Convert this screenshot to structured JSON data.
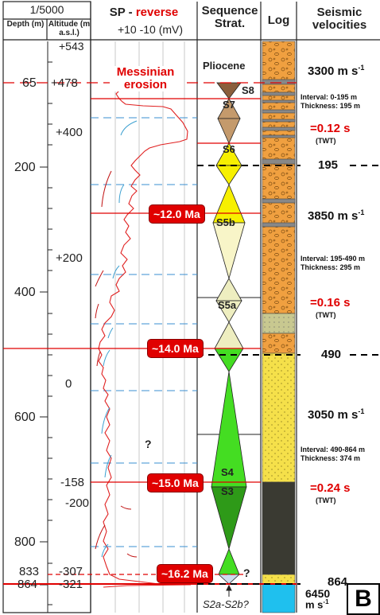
{
  "header": {
    "scale": "1/5000",
    "depth_title": "Depth (m)",
    "altitude_title": "Altitude (m a.s.l.)",
    "sp_title_prefix": "SP - ",
    "sp_title_emph": "reverse",
    "sp_scale": "+10 -10 (mV)",
    "seq_title": "Sequence Strat.",
    "log_title": "Log",
    "seismic_title": "Seismic velocities"
  },
  "depth_ticks": [
    "65",
    "200",
    "400",
    "600",
    "800",
    "833",
    "864"
  ],
  "altitude_ticks": [
    "+543",
    "+478",
    "+400",
    "+200",
    "0",
    "-158",
    "-200",
    "-307",
    "-321"
  ],
  "events": {
    "messinian": "Messinian erosion",
    "age_12": "~12.0 Ma",
    "age_14": "~14.0 Ma",
    "age_15": "~15.0 Ma",
    "age_162": "~16.2 Ma",
    "question": "?"
  },
  "sequences": {
    "pliocene": "Pliocene",
    "s8": "S8",
    "s7": "S7",
    "s6": "S6",
    "s5b": "S5b",
    "s5a": "S5a",
    "s4": "S4",
    "s3": "S3",
    "s2": "S2a-S2b?"
  },
  "velocities": {
    "v1": "3300 m s",
    "v1_interval": "Interval: 0-195 m",
    "v1_thickness": "Thickness: 195 m",
    "v1_twt": "=0.12 s",
    "boundary1": "195",
    "v2": "3850 m s",
    "v2_interval": "Interval: 195-490 m",
    "v2_thickness": "Thickness: 295 m",
    "v2_twt": "=0.16 s",
    "boundary2": "490",
    "v3": "3050 m s",
    "v3_interval": "Interval: 490-864 m",
    "v3_thickness": "Thickness: 374 m",
    "v3_twt": "=0.24 s",
    "boundary3": "864",
    "v4": "6450",
    "v4_unit": "m s",
    "exp": "-1",
    "twt_label": "(TWT)"
  },
  "panel_label": "B",
  "colors": {
    "red": "#e00000",
    "conglomerate": "#f0a040",
    "sand": "#f5e04a",
    "clay": "#3a3a32",
    "basement": "#1fc0ee",
    "marl": "#c8c890",
    "s8": "#8b5e3c",
    "s7": "#c49a6c",
    "s6": "#f7f000",
    "s5b": "#f8f5c8",
    "s5a": "#eeeec0",
    "s4": "#44dd22",
    "s3": "#2e9a18"
  }
}
